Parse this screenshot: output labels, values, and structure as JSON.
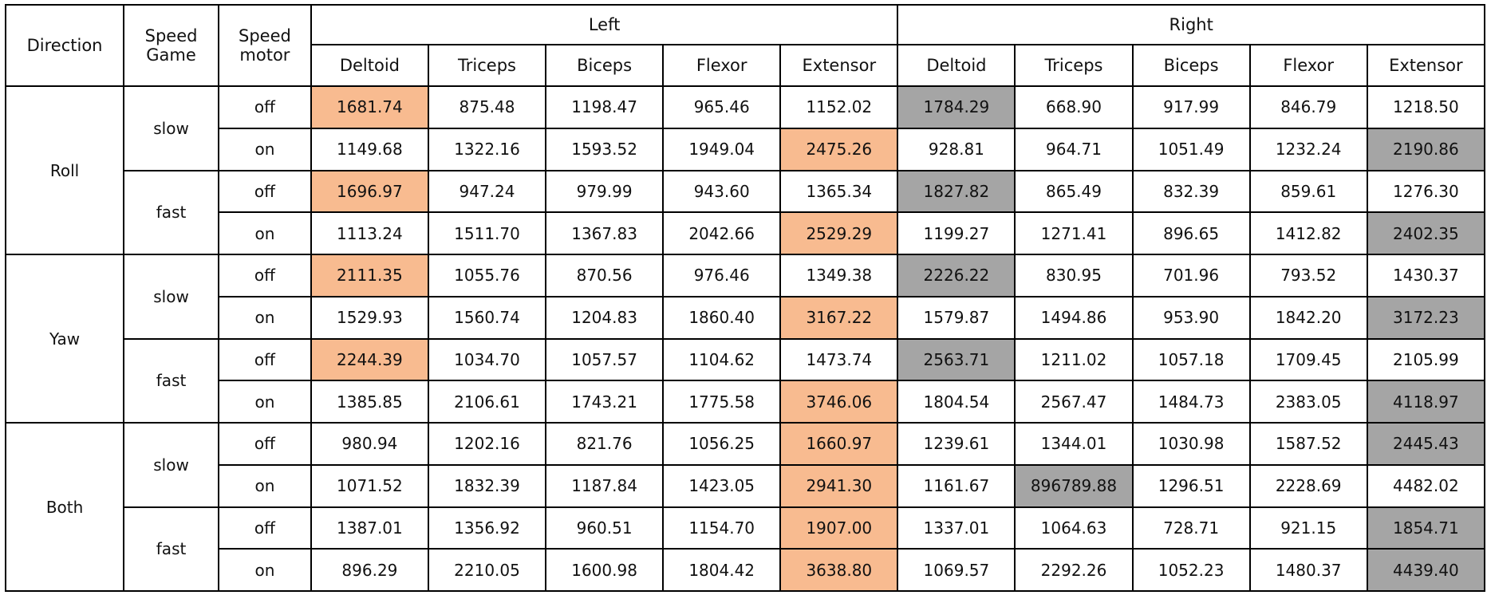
{
  "headers": {
    "direction": "Direction",
    "speed_game": "Speed Game",
    "speed_motor": "Speed motor",
    "left": "Left",
    "right": "Right",
    "muscles": [
      "Deltoid",
      "Triceps",
      "Biceps",
      "Flexor",
      "Extensor"
    ]
  },
  "highlight_colors": {
    "left": "#f8bb90",
    "right": "#a5a5a5"
  },
  "rows": [
    {
      "direction": "Roll",
      "speed_game": "slow",
      "motor": "off",
      "values": [
        "1681.74",
        "875.48",
        "1198.47",
        "965.46",
        "1152.02",
        "1784.29",
        "668.90",
        "917.99",
        "846.79",
        "1218.50"
      ],
      "hl": [
        0,
        5
      ]
    },
    {
      "direction": "Roll",
      "speed_game": "slow",
      "motor": "on",
      "values": [
        "1149.68",
        "1322.16",
        "1593.52",
        "1949.04",
        "2475.26",
        "928.81",
        "964.71",
        "1051.49",
        "1232.24",
        "2190.86"
      ],
      "hl": [
        4,
        9
      ]
    },
    {
      "direction": "Roll",
      "speed_game": "fast",
      "motor": "off",
      "values": [
        "1696.97",
        "947.24",
        "979.99",
        "943.60",
        "1365.34",
        "1827.82",
        "865.49",
        "832.39",
        "859.61",
        "1276.30"
      ],
      "hl": [
        0,
        5
      ]
    },
    {
      "direction": "Roll",
      "speed_game": "fast",
      "motor": "on",
      "values": [
        "1113.24",
        "1511.70",
        "1367.83",
        "2042.66",
        "2529.29",
        "1199.27",
        "1271.41",
        "896.65",
        "1412.82",
        "2402.35"
      ],
      "hl": [
        4,
        9
      ]
    },
    {
      "direction": "Yaw",
      "speed_game": "slow",
      "motor": "off",
      "values": [
        "2111.35",
        "1055.76",
        "870.56",
        "976.46",
        "1349.38",
        "2226.22",
        "830.95",
        "701.96",
        "793.52",
        "1430.37"
      ],
      "hl": [
        0,
        5
      ]
    },
    {
      "direction": "Yaw",
      "speed_game": "slow",
      "motor": "on",
      "values": [
        "1529.93",
        "1560.74",
        "1204.83",
        "1860.40",
        "3167.22",
        "1579.87",
        "1494.86",
        "953.90",
        "1842.20",
        "3172.23"
      ],
      "hl": [
        4,
        9
      ]
    },
    {
      "direction": "Yaw",
      "speed_game": "fast",
      "motor": "off",
      "values": [
        "2244.39",
        "1034.70",
        "1057.57",
        "1104.62",
        "1473.74",
        "2563.71",
        "1211.02",
        "1057.18",
        "1709.45",
        "2105.99"
      ],
      "hl": [
        0,
        5
      ]
    },
    {
      "direction": "Yaw",
      "speed_game": "fast",
      "motor": "on",
      "values": [
        "1385.85",
        "2106.61",
        "1743.21",
        "1775.58",
        "3746.06",
        "1804.54",
        "2567.47",
        "1484.73",
        "2383.05",
        "4118.97"
      ],
      "hl": [
        4,
        9
      ]
    },
    {
      "direction": "Both",
      "speed_game": "slow",
      "motor": "off",
      "values": [
        "980.94",
        "1202.16",
        "821.76",
        "1056.25",
        "1660.97",
        "1239.61",
        "1344.01",
        "1030.98",
        "1587.52",
        "2445.43"
      ],
      "hl": [
        4,
        9
      ]
    },
    {
      "direction": "Both",
      "speed_game": "slow",
      "motor": "on",
      "values": [
        "1071.52",
        "1832.39",
        "1187.84",
        "1423.05",
        "2941.30",
        "1161.67",
        "896789.88",
        "1296.51",
        "2228.69",
        "4482.02"
      ],
      "hl": [
        4,
        6
      ]
    },
    {
      "direction": "Both",
      "speed_game": "fast",
      "motor": "off",
      "values": [
        "1387.01",
        "1356.92",
        "960.51",
        "1154.70",
        "1907.00",
        "1337.01",
        "1064.63",
        "728.71",
        "921.15",
        "1854.71"
      ],
      "hl": [
        4,
        9
      ]
    },
    {
      "direction": "Both",
      "speed_game": "fast",
      "motor": "on",
      "values": [
        "896.29",
        "2210.05",
        "1600.98",
        "1804.42",
        "3638.80",
        "1069.57",
        "2292.26",
        "1052.23",
        "1480.37",
        "4439.40"
      ],
      "hl": [
        4,
        9
      ]
    }
  ]
}
